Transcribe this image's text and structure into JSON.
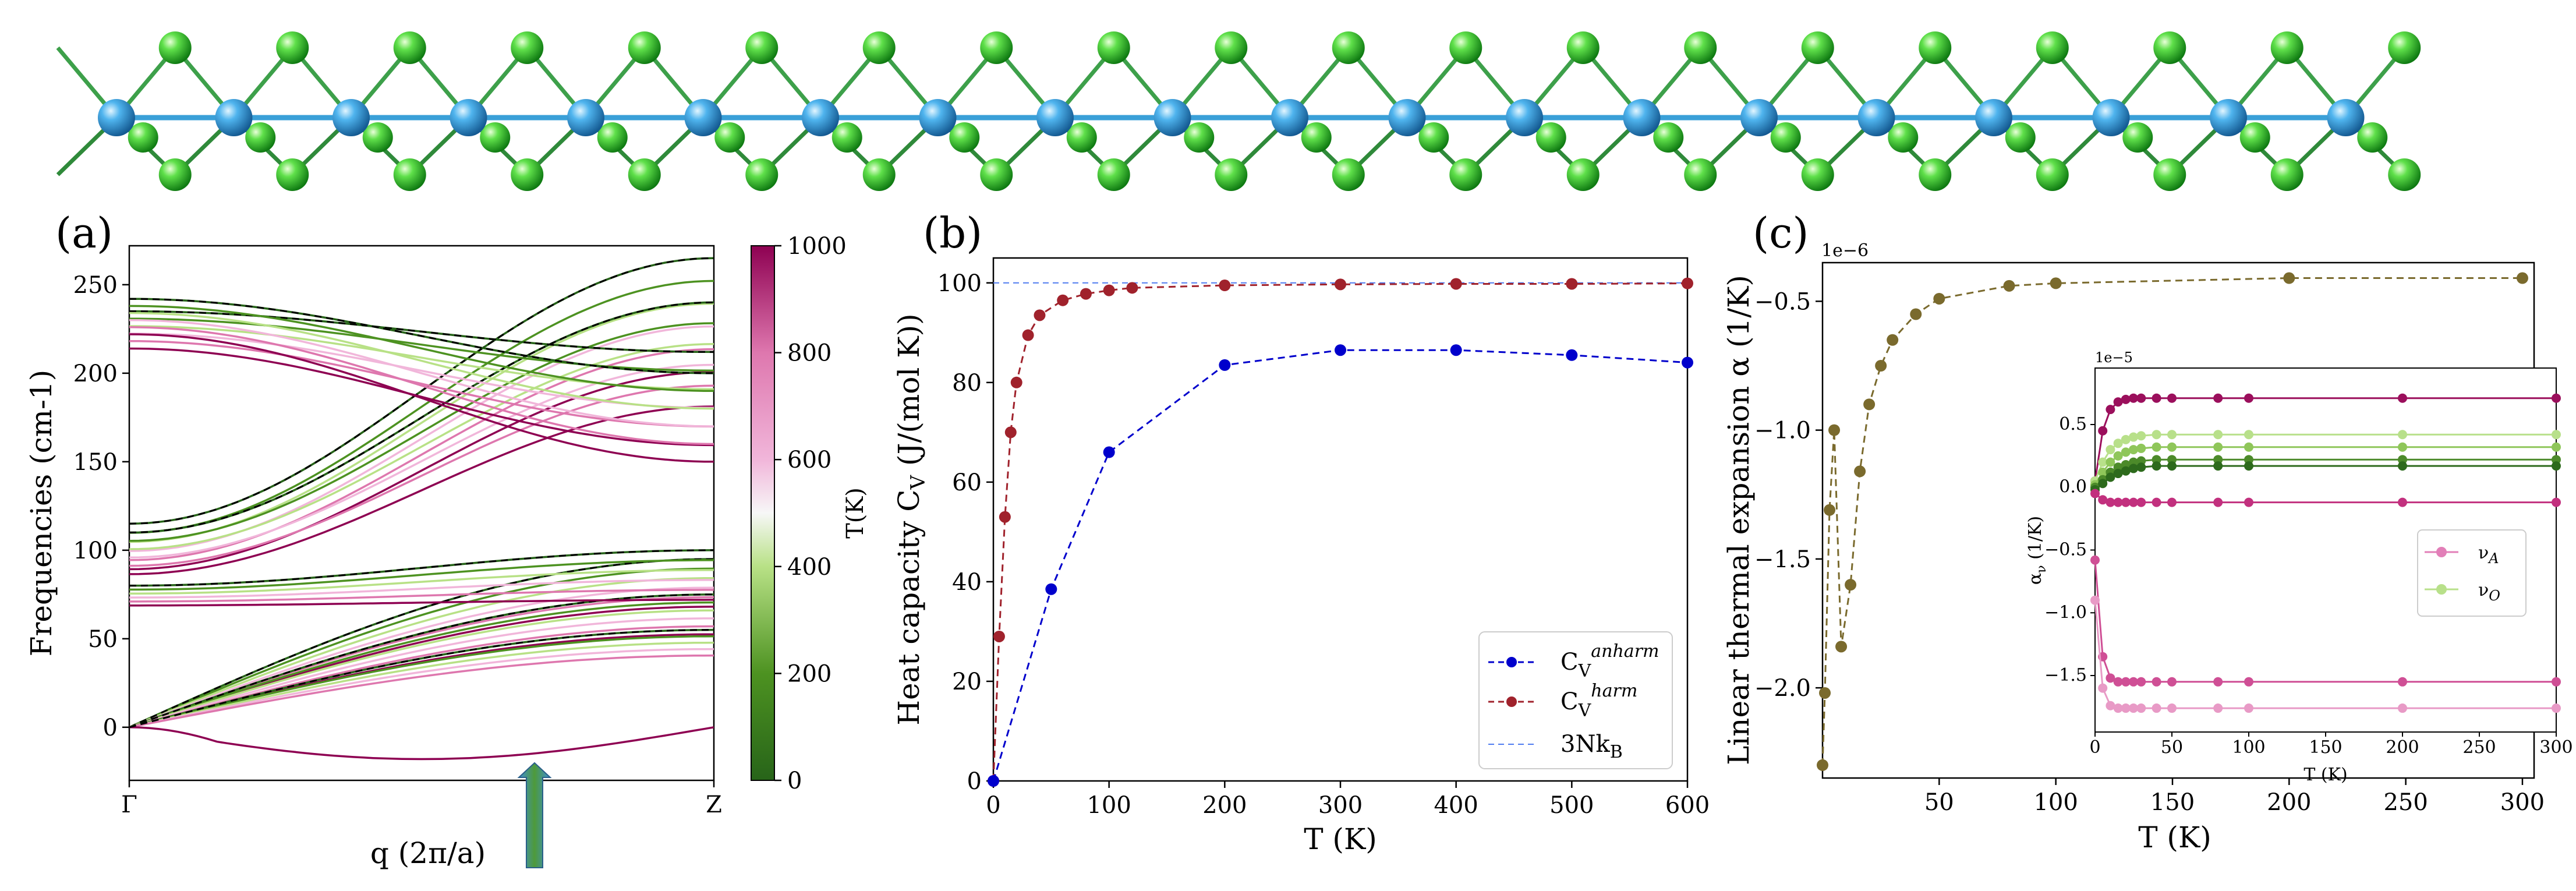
{
  "panels": {
    "a": {
      "label": "(a)"
    },
    "b": {
      "label": "(b)"
    },
    "c": {
      "label": "(c)"
    }
  },
  "chart_data": [
    {
      "panel": "a",
      "type": "line",
      "title": "",
      "xlabel": "q (2π/a)",
      "ylabel": "Frequencies (cm-1)",
      "xticks": [
        "Γ",
        "Z"
      ],
      "ylim": [
        -30,
        272
      ],
      "yticks": [
        0,
        50,
        100,
        150,
        200,
        250
      ],
      "colorbar": {
        "label": "T(K)",
        "range": [
          0,
          1000
        ],
        "ticks": [
          0,
          200,
          400,
          600,
          800,
          1000
        ],
        "colormap": "PiYG"
      },
      "temperatures": [
        0,
        200,
        400,
        600,
        800,
        1000
      ],
      "branches": [
        {
          "start": 0,
          "end": 95
        },
        {
          "start": 0,
          "end": 75
        },
        {
          "start": 0,
          "end": 55
        },
        {
          "start": 80,
          "end": 100
        },
        {
          "start": 115,
          "end": 265
        },
        {
          "start": 110,
          "end": 240
        },
        {
          "start": 235,
          "end": 212
        },
        {
          "start": 242,
          "end": 200
        }
      ],
      "dashed_reference_color": "#000000"
    },
    {
      "panel": "b",
      "type": "line",
      "title": "",
      "xlabel": "T (K)",
      "ylabel": "Heat capacity C_V (J/(mol K))",
      "xlim": [
        0,
        600
      ],
      "ylim": [
        0,
        105
      ],
      "xticks": [
        0,
        100,
        200,
        300,
        400,
        500,
        600
      ],
      "yticks": [
        0,
        20,
        40,
        60,
        80,
        100
      ],
      "legend_position": "lower-right",
      "series": [
        {
          "name": "C_V^anharm",
          "color": "#0000cc",
          "x": [
            0,
            50,
            100,
            200,
            300,
            400,
            500,
            600
          ],
          "y": [
            0,
            38.5,
            66,
            83.5,
            86.5,
            86.5,
            85.5,
            84
          ]
        },
        {
          "name": "C_V^harm",
          "color": "#a0222c",
          "x": [
            0,
            5,
            10,
            15,
            20,
            30,
            40,
            60,
            80,
            100,
            120,
            200,
            300,
            400,
            500,
            600
          ],
          "y": [
            0,
            29,
            53,
            70,
            80,
            89.5,
            93.5,
            96.5,
            97.8,
            98.5,
            99,
            99.5,
            99.7,
            99.8,
            99.8,
            99.9
          ]
        },
        {
          "name": "3Nk_B",
          "color": "#4f7bf0",
          "x": [
            0,
            600
          ],
          "y": [
            100,
            100
          ],
          "style": "dashed"
        }
      ]
    },
    {
      "panel": "c",
      "type": "line",
      "title": "",
      "xlabel": "T (K)",
      "ylabel": "Linear thermal expansion α (1/K)",
      "offset_text": "1e−6",
      "xlim": [
        0,
        305
      ],
      "ylim": [
        -2.35,
        -0.35
      ],
      "xticks": [
        50,
        100,
        150,
        200,
        250,
        300
      ],
      "yticks": [
        -2.0,
        -1.5,
        -1.0,
        -0.5
      ],
      "series": [
        {
          "name": "",
          "color": "#7a6a2d",
          "x": [
            0,
            1,
            3,
            5,
            8,
            12,
            16,
            20,
            25,
            30,
            40,
            50,
            80,
            100,
            200,
            300
          ],
          "y": [
            -2.3,
            -2.02,
            -1.31,
            -1.0,
            -1.84,
            -1.6,
            -1.16,
            -0.9,
            -0.75,
            -0.65,
            -0.55,
            -0.49,
            -0.44,
            -0.43,
            -0.41,
            -0.41
          ]
        }
      ]
    },
    {
      "panel": "c-inset",
      "type": "line",
      "title": "",
      "xlabel": "T (K)",
      "ylabel": "α_ν (1/K)",
      "offset_text": "1e−5",
      "xlim": [
        0,
        300
      ],
      "ylim": [
        -1.95,
        0.95
      ],
      "xticks": [
        0,
        50,
        100,
        150,
        200,
        250,
        300
      ],
      "yticks": [
        -1.5,
        -1.0,
        -0.5,
        0.0,
        0.5
      ],
      "legend_position": "center-right",
      "legend": [
        {
          "name": "ν_A",
          "color": "#e27fb8"
        },
        {
          "name": "ν_O",
          "color": "#b8e08a"
        }
      ],
      "x": [
        0,
        5,
        10,
        15,
        20,
        25,
        30,
        40,
        50,
        80,
        100,
        200,
        300
      ],
      "series": [
        {
          "name": "",
          "color": "#9b0f5c",
          "y": [
            0.05,
            0.45,
            0.62,
            0.68,
            0.7,
            0.71,
            0.71,
            0.71,
            0.71,
            0.71,
            0.71,
            0.71,
            0.71
          ]
        },
        {
          "name": "",
          "color": "#b8e08a",
          "y": [
            0.05,
            0.2,
            0.3,
            0.35,
            0.38,
            0.4,
            0.41,
            0.42,
            0.42,
            0.42,
            0.42,
            0.42,
            0.42
          ]
        },
        {
          "name": "",
          "color": "#8fc65a",
          "y": [
            0.02,
            0.12,
            0.2,
            0.25,
            0.28,
            0.3,
            0.31,
            0.32,
            0.32,
            0.32,
            0.32,
            0.32,
            0.32
          ]
        },
        {
          "name": "",
          "color": "#4c8a2a",
          "y": [
            0.0,
            0.06,
            0.12,
            0.16,
            0.18,
            0.2,
            0.21,
            0.22,
            0.22,
            0.22,
            0.22,
            0.22,
            0.22
          ]
        },
        {
          "name": "",
          "color": "#2d6a1c",
          "y": [
            -0.02,
            0.03,
            0.08,
            0.11,
            0.13,
            0.15,
            0.16,
            0.17,
            0.17,
            0.17,
            0.17,
            0.17,
            0.17
          ]
        },
        {
          "name": "",
          "color": "#c2307e",
          "y": [
            -0.05,
            -0.1,
            -0.12,
            -0.12,
            -0.12,
            -0.12,
            -0.12,
            -0.12,
            -0.12,
            -0.12,
            -0.12,
            -0.12,
            -0.12
          ]
        },
        {
          "name": "",
          "color": "#cf4f95",
          "y": [
            -0.58,
            -1.35,
            -1.52,
            -1.55,
            -1.55,
            -1.55,
            -1.55,
            -1.55,
            -1.55,
            -1.55,
            -1.55,
            -1.55,
            -1.55
          ]
        },
        {
          "name": "",
          "color": "#e89ac6",
          "y": [
            -0.9,
            -1.6,
            -1.74,
            -1.76,
            -1.76,
            -1.76,
            -1.76,
            -1.76,
            -1.76,
            -1.76,
            -1.76,
            -1.76,
            -1.76
          ]
        }
      ]
    }
  ]
}
